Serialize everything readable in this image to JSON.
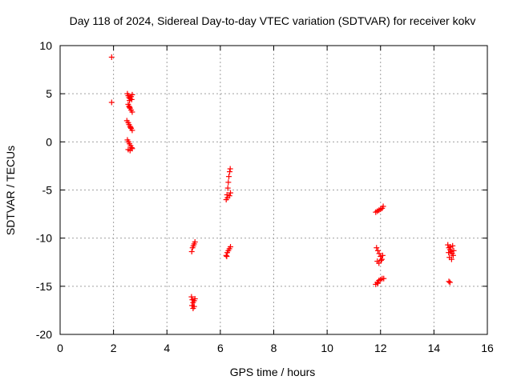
{
  "chart_data": {
    "type": "scatter",
    "title": "Day 118 of 2024, Sidereal Day-to-day VTEC variation (SDTVAR) for receiver kokv",
    "xlabel": "GPS time / hours",
    "ylabel": "SDTVAR / TECUs",
    "xlim": [
      0,
      16
    ],
    "ylim": [
      -20,
      10
    ],
    "xticks": [
      0,
      2,
      4,
      6,
      8,
      10,
      12,
      14,
      16
    ],
    "yticks": [
      -20,
      -15,
      -10,
      -5,
      0,
      5,
      10
    ],
    "xtick_labels": [
      "0",
      "2",
      "4",
      "6",
      "8",
      "10",
      "12",
      "14",
      "16"
    ],
    "ytick_labels": [
      "-20",
      "-15",
      "-10",
      "-5",
      "0",
      "5",
      "10"
    ],
    "grid": true,
    "marker": "+",
    "color": "#ff0000",
    "series": [
      {
        "name": "SDTVAR",
        "points": [
          [
            1.93,
            8.8
          ],
          [
            1.93,
            4.1
          ],
          [
            2.52,
            5.0
          ],
          [
            2.55,
            4.8
          ],
          [
            2.58,
            4.6
          ],
          [
            2.62,
            4.5
          ],
          [
            2.66,
            4.7
          ],
          [
            2.7,
            4.9
          ],
          [
            2.6,
            4.3
          ],
          [
            2.68,
            4.4
          ],
          [
            2.55,
            3.9
          ],
          [
            2.58,
            3.7
          ],
          [
            2.62,
            3.5
          ],
          [
            2.66,
            3.3
          ],
          [
            2.7,
            3.1
          ],
          [
            2.6,
            3.6
          ],
          [
            2.5,
            2.2
          ],
          [
            2.55,
            2.0
          ],
          [
            2.58,
            1.8
          ],
          [
            2.62,
            1.6
          ],
          [
            2.66,
            1.4
          ],
          [
            2.7,
            1.2
          ],
          [
            2.64,
            1.5
          ],
          [
            2.52,
            0.2
          ],
          [
            2.56,
            0.0
          ],
          [
            2.6,
            -0.2
          ],
          [
            2.64,
            -0.4
          ],
          [
            2.68,
            -0.6
          ],
          [
            2.55,
            -0.8
          ],
          [
            2.62,
            -0.9
          ],
          [
            2.7,
            -0.7
          ],
          [
            4.93,
            -11.4
          ],
          [
            4.96,
            -11.0
          ],
          [
            4.99,
            -10.8
          ],
          [
            5.02,
            -10.6
          ],
          [
            5.05,
            -10.4
          ],
          [
            4.92,
            -16.1
          ],
          [
            4.95,
            -16.4
          ],
          [
            4.98,
            -16.7
          ],
          [
            5.02,
            -16.5
          ],
          [
            5.05,
            -16.3
          ],
          [
            4.94,
            -17.0
          ],
          [
            4.98,
            -17.3
          ],
          [
            5.02,
            -17.1
          ],
          [
            6.22,
            -6.0
          ],
          [
            6.25,
            -5.5
          ],
          [
            6.28,
            -4.8
          ],
          [
            6.3,
            -4.2
          ],
          [
            6.32,
            -3.6
          ],
          [
            6.35,
            -3.1
          ],
          [
            6.37,
            -2.8
          ],
          [
            6.34,
            -5.6
          ],
          [
            6.38,
            -5.3
          ],
          [
            6.27,
            -5.8
          ],
          [
            6.22,
            -11.8
          ],
          [
            6.26,
            -11.5
          ],
          [
            6.3,
            -11.3
          ],
          [
            6.34,
            -11.1
          ],
          [
            6.38,
            -10.9
          ],
          [
            6.24,
            -11.9
          ],
          [
            11.82,
            -7.3
          ],
          [
            11.88,
            -7.2
          ],
          [
            11.94,
            -7.1
          ],
          [
            12.0,
            -7.0
          ],
          [
            12.06,
            -6.9
          ],
          [
            12.1,
            -6.7
          ],
          [
            11.85,
            -11.0
          ],
          [
            11.9,
            -11.3
          ],
          [
            11.95,
            -11.6
          ],
          [
            12.0,
            -11.9
          ],
          [
            12.05,
            -12.2
          ],
          [
            11.88,
            -12.4
          ],
          [
            11.94,
            -12.6
          ],
          [
            12.02,
            -12.3
          ],
          [
            12.08,
            -11.8
          ],
          [
            11.82,
            -14.8
          ],
          [
            11.88,
            -14.6
          ],
          [
            11.94,
            -14.4
          ],
          [
            12.0,
            -14.3
          ],
          [
            12.06,
            -14.2
          ],
          [
            12.12,
            -14.2
          ],
          [
            11.9,
            -14.7
          ],
          [
            14.52,
            -10.7
          ],
          [
            14.56,
            -11.0
          ],
          [
            14.6,
            -11.2
          ],
          [
            14.64,
            -11.4
          ],
          [
            14.68,
            -11.6
          ],
          [
            14.72,
            -11.8
          ],
          [
            14.58,
            -12.0
          ],
          [
            14.66,
            -12.2
          ],
          [
            14.7,
            -10.8
          ],
          [
            14.62,
            -10.9
          ],
          [
            14.55,
            -11.5
          ],
          [
            14.74,
            -11.3
          ],
          [
            14.56,
            -14.5
          ],
          [
            14.6,
            -14.6
          ]
        ]
      }
    ]
  }
}
